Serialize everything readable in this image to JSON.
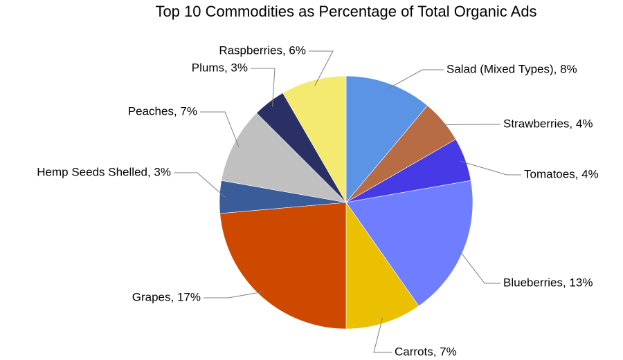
{
  "chart_data": {
    "type": "pie",
    "title": "Top 10 Commodities as Percentage of Total Organic Ads",
    "start_angle": 90,
    "direction": "clockwise",
    "slices": [
      {
        "name": "Salad (Mixed Types)",
        "value": 8,
        "label": "Salad (Mixed Types), 8%",
        "color": "#5b94e4"
      },
      {
        "name": "Strawberries",
        "value": 4,
        "label": "Strawberries, 4%",
        "color": "#b86c44"
      },
      {
        "name": "Tomatoes",
        "value": 4,
        "label": "Tomatoes, 4%",
        "color": "#453ae6"
      },
      {
        "name": "Blueberries",
        "value": 13,
        "label": "Blueberries, 13%",
        "color": "#6e7eff"
      },
      {
        "name": "Carrots",
        "value": 7,
        "label": "Carrots, 7%",
        "color": "#eac001"
      },
      {
        "name": "Grapes",
        "value": 17,
        "label": "Grapes, 17%",
        "color": "#cd4900"
      },
      {
        "name": "Hemp Seeds Shelled",
        "value": 3,
        "label": "Hemp Seeds Shelled, 3%",
        "color": "#3a5d9a"
      },
      {
        "name": "Peaches",
        "value": 7,
        "label": "Peaches, 7%",
        "color": "#c0c0c0"
      },
      {
        "name": "Plums",
        "value": 3,
        "label": "Plums, 3%",
        "color": "#2b3064"
      },
      {
        "name": "Raspberries",
        "value": 6,
        "label": "Raspberries, 6%",
        "color": "#f4ea70"
      }
    ]
  }
}
